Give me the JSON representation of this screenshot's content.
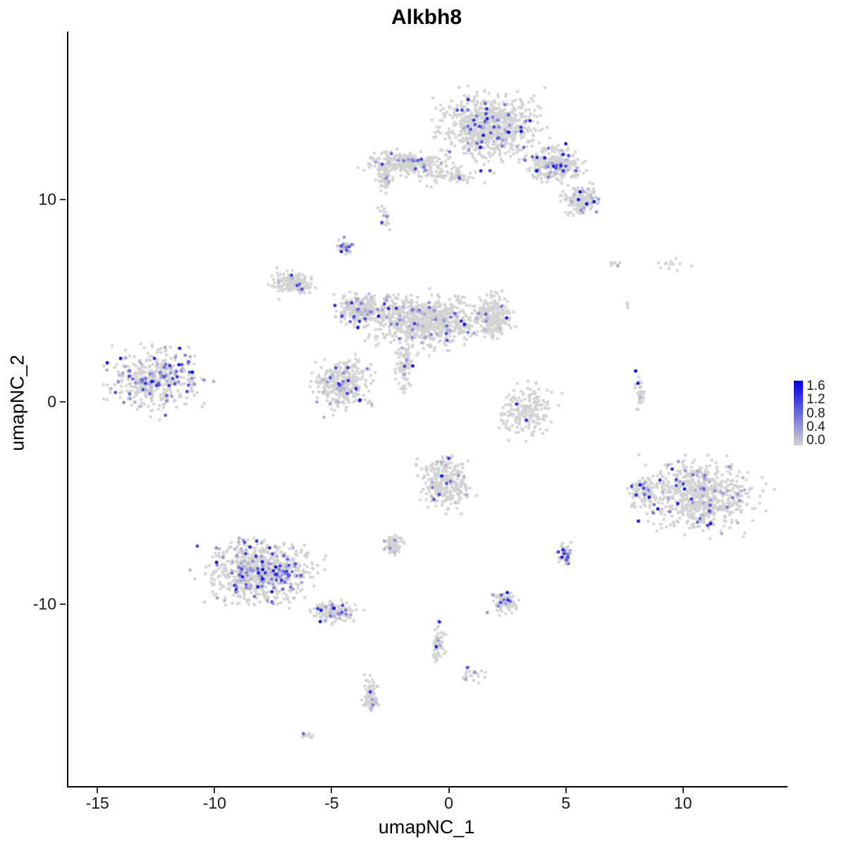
{
  "chart_data": {
    "type": "scatter",
    "title": "Alkbh8",
    "xlabel": "umapNC_1",
    "ylabel": "umapNC_2",
    "xlim": [
      -16.3,
      14.4
    ],
    "ylim": [
      -19.0,
      18.3
    ],
    "xticks": [
      -15,
      -10,
      -5,
      0,
      5,
      10
    ],
    "yticks": [
      -10,
      0,
      10
    ],
    "grid": false,
    "legend_position": "right",
    "point_radius": 2.2,
    "seed": 42,
    "colors": {
      "low": "#D3D3D3",
      "high": "#0000E5",
      "axis": "#000000",
      "text": "#1a1a1a"
    },
    "legend": {
      "ticks": [
        "1.6",
        "1.2",
        "0.8",
        "0.4",
        "0.0"
      ],
      "max": 1.6,
      "min": 0.0
    },
    "clusters": [
      {
        "x": 1.7,
        "y": 13.6,
        "rx": 1.9,
        "ry": 1.5,
        "n": 800,
        "f": 0.06
      },
      {
        "x": 4.5,
        "y": 11.7,
        "rx": 1.1,
        "ry": 0.8,
        "n": 300,
        "f": 0.08
      },
      {
        "x": 5.6,
        "y": 9.9,
        "rx": 0.7,
        "ry": 0.7,
        "n": 160,
        "f": 0.13
      },
      {
        "x": -1.9,
        "y": 11.8,
        "rx": 1.6,
        "ry": 0.55,
        "n": 280,
        "f": 0.07
      },
      {
        "x": -2.8,
        "y": 11.0,
        "rx": 0.35,
        "ry": 0.6,
        "n": 60,
        "f": 0.05
      },
      {
        "x": 0.0,
        "y": 11.2,
        "rx": 1.3,
        "ry": 0.4,
        "n": 80,
        "f": 0.04
      },
      {
        "x": -2.7,
        "y": 8.9,
        "rx": 0.25,
        "ry": 0.45,
        "n": 14,
        "f": 0.12
      },
      {
        "x": -4.5,
        "y": 7.6,
        "rx": 0.3,
        "ry": 0.4,
        "n": 35,
        "f": 0.25
      },
      {
        "x": -6.7,
        "y": 5.9,
        "rx": 0.9,
        "ry": 0.55,
        "n": 160,
        "f": 0.03
      },
      {
        "x": -1.1,
        "y": 4.0,
        "rx": 2.3,
        "ry": 1.2,
        "n": 850,
        "f": 0.07
      },
      {
        "x": -3.9,
        "y": 4.6,
        "rx": 1.0,
        "ry": 0.7,
        "n": 260,
        "f": 0.12
      },
      {
        "x": 1.9,
        "y": 4.2,
        "rx": 0.75,
        "ry": 0.95,
        "n": 220,
        "f": 0.05
      },
      {
        "x": -4.6,
        "y": 0.9,
        "rx": 1.1,
        "ry": 1.15,
        "n": 350,
        "f": 0.08
      },
      {
        "x": -1.9,
        "y": 1.8,
        "rx": 0.4,
        "ry": 1.1,
        "n": 90,
        "f": 0.05
      },
      {
        "x": -12.6,
        "y": 1.1,
        "rx": 1.9,
        "ry": 1.4,
        "n": 450,
        "f": 0.18
      },
      {
        "x": 3.2,
        "y": -0.5,
        "rx": 1.1,
        "ry": 1.2,
        "n": 200,
        "f": 0.02
      },
      {
        "x": 8.1,
        "y": 0.45,
        "rx": 0.22,
        "ry": 0.95,
        "n": 45,
        "f": 0.15
      },
      {
        "x": 10.6,
        "y": -4.7,
        "rx": 2.2,
        "ry": 1.6,
        "n": 750,
        "f": 0.08
      },
      {
        "x": 8.2,
        "y": -4.5,
        "rx": 0.5,
        "ry": 0.8,
        "n": 90,
        "f": 0.1
      },
      {
        "x": -8.1,
        "y": -8.4,
        "rx": 2.2,
        "ry": 1.5,
        "n": 750,
        "f": 0.18
      },
      {
        "x": -5.0,
        "y": -10.4,
        "rx": 0.9,
        "ry": 0.5,
        "n": 150,
        "f": 0.12
      },
      {
        "x": -0.2,
        "y": -4.0,
        "rx": 1.0,
        "ry": 1.25,
        "n": 280,
        "f": 0.1
      },
      {
        "x": -2.4,
        "y": -7.1,
        "rx": 0.4,
        "ry": 0.45,
        "n": 70,
        "f": 0.06
      },
      {
        "x": 4.9,
        "y": -7.5,
        "rx": 0.3,
        "ry": 0.45,
        "n": 55,
        "f": 0.2
      },
      {
        "x": 2.3,
        "y": -9.9,
        "rx": 0.55,
        "ry": 0.5,
        "n": 90,
        "f": 0.12
      },
      {
        "x": -0.5,
        "y": -12.0,
        "rx": 0.28,
        "ry": 0.85,
        "n": 55,
        "f": 0.1
      },
      {
        "x": 0.9,
        "y": -13.5,
        "rx": 0.6,
        "ry": 0.35,
        "n": 22,
        "f": 0.08
      },
      {
        "x": -3.4,
        "y": -14.6,
        "rx": 0.3,
        "ry": 1.0,
        "n": 80,
        "f": 0.08
      },
      {
        "x": -6.1,
        "y": -16.5,
        "rx": 0.25,
        "ry": 0.2,
        "n": 10,
        "f": 0.1
      },
      {
        "x": 7.1,
        "y": 6.9,
        "rx": 0.35,
        "ry": 0.3,
        "n": 7,
        "f": 0.15
      },
      {
        "x": 9.4,
        "y": 6.8,
        "rx": 0.8,
        "ry": 0.3,
        "n": 12,
        "f": 0.05
      },
      {
        "x": 7.6,
        "y": 4.9,
        "rx": 0.2,
        "ry": 0.3,
        "n": 4,
        "f": 0.0
      },
      {
        "x": -2.9,
        "y": 9.5,
        "rx": 0.2,
        "ry": 0.2,
        "n": 5,
        "f": 0.1
      }
    ]
  }
}
